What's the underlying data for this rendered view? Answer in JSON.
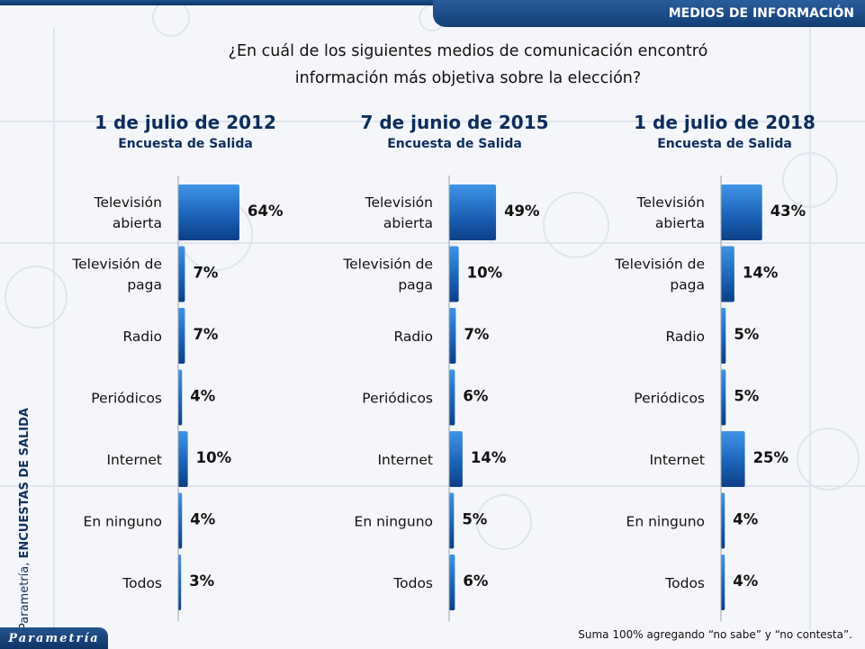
{
  "header": {
    "section_title": "MEDIOS DE INFORMACIÓN"
  },
  "question": {
    "line1": "¿En cuál de los siguientes medios de comunicación encontró",
    "line2": "información más objetiva sobre la elección?"
  },
  "side_label": {
    "prefix": "Parametría, ",
    "bold": "ENCUESTAS DE SALIDA"
  },
  "brand": {
    "logo_text": "Parametría"
  },
  "footnote": "Suma 100% agregando “no sabe” y “no contesta”.",
  "colors": {
    "bar_light": "#3f94e6",
    "bar_dark": "#0b3f86",
    "title": "#0d2d5a"
  },
  "chart_data": [
    {
      "type": "bar",
      "title": "1 de julio de 2012",
      "subtitle": "Encuesta de Salida",
      "categories": [
        [
          "Televisión",
          "abierta"
        ],
        [
          "Televisión de",
          "paga"
        ],
        [
          "Radio"
        ],
        [
          "Periódicos"
        ],
        [
          "Internet"
        ],
        [
          "En ninguno"
        ],
        [
          "Todos"
        ]
      ],
      "values": [
        64,
        7,
        7,
        4,
        10,
        4,
        3
      ],
      "value_labels": [
        "64%",
        "7%",
        "7%",
        "4%",
        "10%",
        "4%",
        "3%"
      ],
      "orientation": "horizontal"
    },
    {
      "type": "bar",
      "title": "7 de junio de 2015",
      "subtitle": "Encuesta de Salida",
      "categories": [
        [
          "Televisión",
          "abierta"
        ],
        [
          "Televisión de",
          "paga"
        ],
        [
          "Radio"
        ],
        [
          "Periódicos"
        ],
        [
          "Internet"
        ],
        [
          "En ninguno"
        ],
        [
          "Todos"
        ]
      ],
      "values": [
        49,
        10,
        7,
        6,
        14,
        5,
        6
      ],
      "value_labels": [
        "49%",
        "10%",
        "7%",
        "6%",
        "14%",
        "5%",
        "6%"
      ],
      "orientation": "horizontal"
    },
    {
      "type": "bar",
      "title": "1 de julio de 2018",
      "subtitle": "Encuesta de Salida",
      "categories": [
        [
          "Televisión",
          "abierta"
        ],
        [
          "Televisión de",
          "paga"
        ],
        [
          "Radio"
        ],
        [
          "Periódicos"
        ],
        [
          "Internet"
        ],
        [
          "En ninguno"
        ],
        [
          "Todos"
        ]
      ],
      "values": [
        43,
        14,
        5,
        5,
        25,
        4,
        4
      ],
      "value_labels": [
        "43%",
        "14%",
        "5%",
        "5%",
        "25%",
        "4%",
        "4%"
      ],
      "orientation": "horizontal"
    }
  ]
}
